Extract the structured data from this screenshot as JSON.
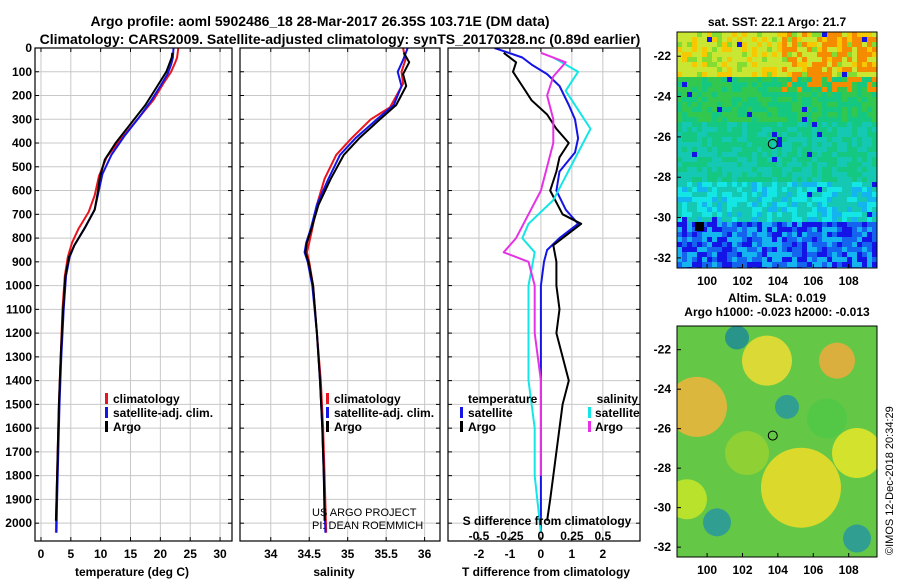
{
  "header": {
    "title_line1": "Argo profile: aoml 5902486_18 28-Mar-2017 26.35S 103.71E (DM data)",
    "title_line2": "Climatology: CARS2009. Satellite-adjusted climatology: synTS_20170328.nc (0.89d earlier)"
  },
  "colors": {
    "climatology": "#e8141e",
    "satellite": "#1414e6",
    "argo": "#000000",
    "argo_salinity": "#e632e6",
    "satellite_salinity": "#14e6e6"
  },
  "chart_data": [
    {
      "id": "temperature",
      "type": "line",
      "xlabel": "temperature (deg C)",
      "ylabel": "",
      "xlim": [
        -1,
        32
      ],
      "ylim": [
        2075,
        0
      ],
      "xticks": [
        0,
        5,
        10,
        15,
        20,
        25,
        30
      ],
      "yticks": [
        0,
        100,
        200,
        300,
        400,
        500,
        600,
        700,
        800,
        900,
        1000,
        1100,
        1200,
        1300,
        1400,
        1500,
        1600,
        1700,
        1800,
        1900,
        2000
      ],
      "legend": [
        "climatology",
        "satellite-adj. clim.",
        "Argo"
      ],
      "series": [
        {
          "name": "climatology",
          "color": "#e8141e",
          "points": [
            [
              23,
              0
            ],
            [
              22.8,
              40
            ],
            [
              22.5,
              60
            ],
            [
              21.8,
              100
            ],
            [
              20.5,
              150
            ],
            [
              18.8,
              220
            ],
            [
              16.5,
              290
            ],
            [
              13.5,
              380
            ],
            [
              11,
              460
            ],
            [
              9.7,
              540
            ],
            [
              9,
              620
            ],
            [
              8,
              690
            ],
            [
              6.3,
              760
            ],
            [
              5.2,
              820
            ],
            [
              4.5,
              880
            ],
            [
              4,
              960
            ],
            [
              3.6,
              1100
            ],
            [
              3.3,
              1300
            ],
            [
              3,
              1500
            ],
            [
              2.8,
              1700
            ],
            [
              2.6,
              1900
            ],
            [
              2.5,
              2040
            ]
          ]
        },
        {
          "name": "satellite-adj. clim.",
          "color": "#1414e6",
          "points": [
            [
              22.2,
              0
            ],
            [
              22.1,
              40
            ],
            [
              21.8,
              70
            ],
            [
              21.2,
              110
            ],
            [
              20,
              160
            ],
            [
              18.5,
              220
            ],
            [
              16.5,
              290
            ],
            [
              14,
              370
            ],
            [
              11.8,
              450
            ],
            [
              10.3,
              530
            ],
            [
              9.6,
              610
            ],
            [
              9,
              680
            ],
            [
              7.3,
              760
            ],
            [
              5.6,
              830
            ],
            [
              4.8,
              880
            ],
            [
              4.2,
              960
            ],
            [
              3.8,
              1100
            ],
            [
              3.4,
              1300
            ],
            [
              3.1,
              1500
            ],
            [
              2.9,
              1700
            ],
            [
              2.7,
              1900
            ],
            [
              2.6,
              2040
            ]
          ]
        },
        {
          "name": "Argo",
          "color": "#000000",
          "points": [
            [
              22,
              20
            ],
            [
              21.9,
              40
            ],
            [
              21.6,
              60
            ],
            [
              21,
              100
            ],
            [
              19.5,
              160
            ],
            [
              17.5,
              240
            ],
            [
              15,
              320
            ],
            [
              12.5,
              400
            ],
            [
              10.7,
              470
            ],
            [
              9.9,
              540
            ],
            [
              9.5,
              610
            ],
            [
              9,
              680
            ],
            [
              7.5,
              750
            ],
            [
              5.6,
              830
            ],
            [
              4.7,
              880
            ],
            [
              4.1,
              960
            ],
            [
              3.7,
              1100
            ],
            [
              3.3,
              1300
            ],
            [
              3,
              1500
            ],
            [
              2.8,
              1700
            ],
            [
              2.6,
              1900
            ],
            [
              2.5,
              1990
            ]
          ]
        }
      ]
    },
    {
      "id": "salinity",
      "type": "line",
      "xlabel": "salinity",
      "xlim": [
        33.6,
        36.2
      ],
      "ylim": [
        2075,
        0
      ],
      "xticks": [
        34,
        34.5,
        35,
        35.5,
        36
      ],
      "legend": [
        "climatology",
        "satellite-adj. clim.",
        "Argo"
      ],
      "series": [
        {
          "name": "climatology",
          "color": "#e8141e",
          "points": [
            [
              35.72,
              0
            ],
            [
              35.75,
              50
            ],
            [
              35.7,
              100
            ],
            [
              35.72,
              150
            ],
            [
              35.55,
              250
            ],
            [
              35.3,
              300
            ],
            [
              35.05,
              380
            ],
            [
              34.85,
              450
            ],
            [
              34.7,
              550
            ],
            [
              34.6,
              660
            ],
            [
              34.54,
              760
            ],
            [
              34.5,
              820
            ],
            [
              34.47,
              860
            ],
            [
              34.5,
              900
            ],
            [
              34.55,
              1000
            ],
            [
              34.6,
              1200
            ],
            [
              34.65,
              1400
            ],
            [
              34.68,
              1600
            ],
            [
              34.7,
              1800
            ],
            [
              34.72,
              2040
            ]
          ]
        },
        {
          "name": "satellite-adj. clim.",
          "color": "#1414e6",
          "points": [
            [
              35.78,
              0
            ],
            [
              35.72,
              50
            ],
            [
              35.65,
              100
            ],
            [
              35.7,
              160
            ],
            [
              35.6,
              240
            ],
            [
              35.38,
              300
            ],
            [
              35.1,
              380
            ],
            [
              34.9,
              450
            ],
            [
              34.75,
              550
            ],
            [
              34.6,
              660
            ],
            [
              34.52,
              760
            ],
            [
              34.46,
              820
            ],
            [
              34.44,
              860
            ],
            [
              34.48,
              900
            ],
            [
              34.54,
              1000
            ],
            [
              34.6,
              1200
            ],
            [
              34.64,
              1400
            ],
            [
              34.67,
              1600
            ],
            [
              34.69,
              1800
            ],
            [
              34.71,
              2040
            ]
          ]
        },
        {
          "name": "Argo",
          "color": "#000000",
          "points": [
            [
              35.73,
              20
            ],
            [
              35.8,
              60
            ],
            [
              35.72,
              110
            ],
            [
              35.76,
              160
            ],
            [
              35.63,
              240
            ],
            [
              35.42,
              300
            ],
            [
              35.15,
              380
            ],
            [
              34.95,
              450
            ],
            [
              34.78,
              550
            ],
            [
              34.62,
              660
            ],
            [
              34.53,
              760
            ],
            [
              34.47,
              820
            ],
            [
              34.45,
              860
            ],
            [
              34.49,
              900
            ],
            [
              34.55,
              1000
            ],
            [
              34.6,
              1200
            ],
            [
              34.64,
              1400
            ],
            [
              34.67,
              1600
            ],
            [
              34.69,
              1800
            ],
            [
              34.7,
              1990
            ]
          ]
        }
      ],
      "annotation": [
        "US ARGO PROJECT",
        "PI: DEAN ROEMMICH"
      ]
    },
    {
      "id": "difference",
      "type": "line",
      "xlabel": "T difference from climatology",
      "xlabel_top": "S difference from climatology",
      "xlim_T": [
        -3,
        3.2
      ],
      "xticks_T": [
        -2,
        -1,
        0,
        1,
        2
      ],
      "xticks_S": [
        "-0.5",
        "-0.25",
        "0",
        "0.25",
        "0.5"
      ],
      "ylim": [
        2075,
        0
      ],
      "legend_temperature_title": "temperature",
      "legend_salinity_title": "salinity",
      "legend_temperature": [
        "satellite",
        "Argo"
      ],
      "legend_salinity": [
        "satellite",
        "Argo"
      ],
      "series": [
        {
          "name": "temperature satellite",
          "color": "#1414e6",
          "points": [
            [
              -1.5,
              0
            ],
            [
              -0.6,
              40
            ],
            [
              -0.3,
              70
            ],
            [
              0.2,
              110
            ],
            [
              0.6,
              160
            ],
            [
              0.9,
              240
            ],
            [
              1.1,
              300
            ],
            [
              1.2,
              380
            ],
            [
              1.1,
              440
            ],
            [
              0.6,
              520
            ],
            [
              0.5,
              600
            ],
            [
              0.8,
              680
            ],
            [
              1.2,
              740
            ],
            [
              0.6,
              800
            ],
            [
              0.2,
              850
            ],
            [
              0.1,
              900
            ],
            [
              0,
              1000
            ],
            [
              0,
              1200
            ],
            [
              0,
              1400
            ],
            [
              0,
              1600
            ],
            [
              0,
              1800
            ],
            [
              0,
              2040
            ]
          ]
        },
        {
          "name": "temperature Argo",
          "color": "#000000",
          "points": [
            [
              -1.2,
              20
            ],
            [
              -0.8,
              60
            ],
            [
              -0.9,
              100
            ],
            [
              -0.6,
              160
            ],
            [
              -0.3,
              220
            ],
            [
              0.2,
              280
            ],
            [
              0.5,
              340
            ],
            [
              0.9,
              400
            ],
            [
              0.6,
              460
            ],
            [
              0.5,
              520
            ],
            [
              0.3,
              600
            ],
            [
              0.7,
              700
            ],
            [
              1.3,
              740
            ],
            [
              0.9,
              780
            ],
            [
              0.4,
              830
            ],
            [
              0.5,
              900
            ],
            [
              0.5,
              1000
            ],
            [
              0.6,
              1100
            ],
            [
              0.5,
              1200
            ],
            [
              0.7,
              1300
            ],
            [
              0.9,
              1400
            ],
            [
              0.7,
              1500
            ],
            [
              0.6,
              1600
            ],
            [
              0.5,
              1700
            ],
            [
              0.4,
              1800
            ],
            [
              0.3,
              1900
            ],
            [
              0.2,
              1990
            ]
          ]
        },
        {
          "name": "salinity satellite",
          "color": "#14e6e6",
          "points": [
            [
              0.1,
              40
            ],
            [
              0.3,
              100
            ],
            [
              0.2,
              180
            ],
            [
              0.3,
              260
            ],
            [
              0.4,
              340
            ],
            [
              0.3,
              440
            ],
            [
              0.2,
              540
            ],
            [
              0.1,
              640
            ],
            [
              -0.1,
              740
            ],
            [
              -0.15,
              800
            ],
            [
              -0.05,
              860
            ],
            [
              -0.1,
              1000
            ],
            [
              -0.1,
              1200
            ],
            [
              -0.1,
              1400
            ],
            [
              -0.05,
              1600
            ],
            [
              -0.05,
              1800
            ],
            [
              0,
              2040
            ]
          ]
        },
        {
          "name": "salinity Argo",
          "color": "#e632e6",
          "points": [
            [
              0,
              20
            ],
            [
              0.2,
              60
            ],
            [
              0.1,
              120
            ],
            [
              0.05,
              200
            ],
            [
              0.1,
              300
            ],
            [
              0.1,
              400
            ],
            [
              0.05,
              500
            ],
            [
              0,
              600
            ],
            [
              -0.1,
              700
            ],
            [
              -0.2,
              800
            ],
            [
              -0.3,
              860
            ],
            [
              -0.1,
              900
            ],
            [
              -0.05,
              1000
            ],
            [
              -0.05,
              1200
            ],
            [
              0,
              1400
            ],
            [
              0,
              1600
            ],
            [
              0,
              1800
            ]
          ]
        }
      ]
    },
    {
      "id": "sst_map",
      "type": "heatmap",
      "title": "sat. SST: 22.1 Argo: 21.7",
      "xticks": [
        100,
        102,
        104,
        106,
        108
      ],
      "yticks": [
        -22,
        -24,
        -26,
        -28,
        -30,
        -32
      ],
      "xlim": [
        98.3,
        109.6
      ],
      "ylim": [
        -32.5,
        -20.8
      ],
      "marker": {
        "lon": 103.71,
        "lat": -26.35
      }
    },
    {
      "id": "sla_map",
      "type": "heatmap",
      "title": "Altim. SLA: 0.019",
      "subtitle": "Argo h1000: -0.023 h2000: -0.013",
      "xticks": [
        100,
        102,
        104,
        106,
        108
      ],
      "yticks": [
        -22,
        -24,
        -26,
        -28,
        -30,
        -32
      ],
      "xlim": [
        98.3,
        109.6
      ],
      "ylim": [
        -32.5,
        -20.8
      ],
      "marker": {
        "lon": 103.71,
        "lat": -26.35
      }
    }
  ],
  "credit": "©IMOS 12-Dec-2018 20:34:29"
}
